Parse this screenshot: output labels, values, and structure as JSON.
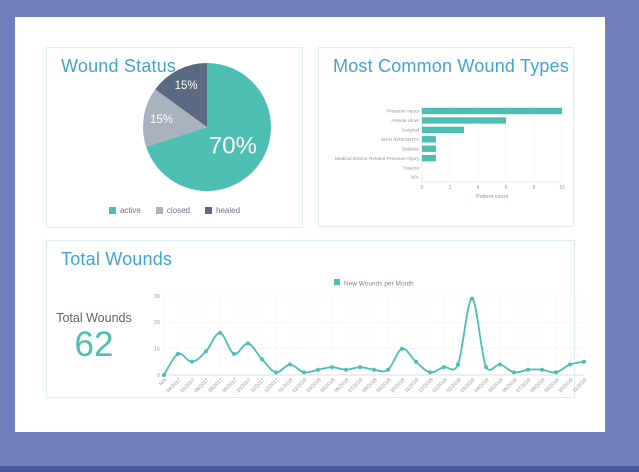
{
  "colors": {
    "frame": "#6F80BC",
    "frame_bottom_bar": "#4A5CA1",
    "page_bg": "#FFFFFF",
    "card_border": "#DCEEF8",
    "card_title": "#41A4D4",
    "accent_teal": "#4DBFB2",
    "pie_gray": "#A9B3BE",
    "pie_dark": "#5B6A80",
    "axis_text": "#8A94A6"
  },
  "wound_status_card": {
    "title": "Wound Status"
  },
  "wound_types_card": {
    "title": "Most Common Wound Types"
  },
  "total_wounds_card": {
    "title": "Total Wounds",
    "stat_label": "Total Wounds",
    "stat_value": "62"
  },
  "chart_data": [
    {
      "id": "wound_status_pie",
      "type": "pie",
      "title": "Wound Status",
      "labels": [
        "active",
        "closed",
        "healed"
      ],
      "values": [
        70,
        15,
        15
      ],
      "slice_labels": [
        "70%",
        "15%",
        "15%"
      ],
      "colors": [
        "#4DBFB2",
        "#A9B3BE",
        "#5B6A80"
      ],
      "legend_position": "bottom"
    },
    {
      "id": "wound_types_bar",
      "type": "bar",
      "orientation": "horizontal",
      "title": "Most Common Wound Types",
      "categories": [
        "Pressure Injury",
        "Arterial Ulcer",
        "Surgical",
        "SKIN INTEGRITY",
        "Diabetic",
        "Medical Device Related Pressure Injury",
        "Trauma",
        "N/A"
      ],
      "values": [
        10,
        6,
        3,
        1,
        1,
        1,
        0,
        0
      ],
      "xlabel": "Patient count",
      "xlim": [
        0,
        10
      ],
      "xticks": [
        0,
        2,
        4,
        6,
        8,
        10
      ],
      "bar_color": "#4DBFB2",
      "grid": true
    },
    {
      "id": "new_wounds_line",
      "type": "line",
      "legend": [
        "New Wounds per Month"
      ],
      "legend_position": "top",
      "categories": [
        "N/A",
        "04/2017",
        "05/2017",
        "06/2017",
        "08/2017",
        "09/2017",
        "10/2017",
        "11/2017",
        "12/2017",
        "01/2018",
        "02/2018",
        "03/2018",
        "05/2018",
        "06/2018",
        "07/2018",
        "08/2018",
        "09/2018",
        "10/2018",
        "11/2018",
        "12/2018",
        "01/2019",
        "02/2019",
        "03/2019",
        "04/2019",
        "05/2019",
        "06/2019",
        "07/2019",
        "08/2019",
        "09/2019",
        "10/2019",
        "11/2019"
      ],
      "values": [
        0,
        8,
        5,
        9,
        16,
        8,
        12,
        6,
        1,
        4,
        1,
        2,
        3,
        2,
        3,
        2,
        2,
        10,
        5,
        1,
        3,
        4,
        29,
        3,
        4,
        1,
        2,
        2,
        1,
        4,
        5
      ],
      "ylim": [
        0,
        30
      ],
      "yticks": [
        0,
        10,
        20,
        30
      ],
      "line_color": "#4DBFB2",
      "grid": true
    }
  ]
}
